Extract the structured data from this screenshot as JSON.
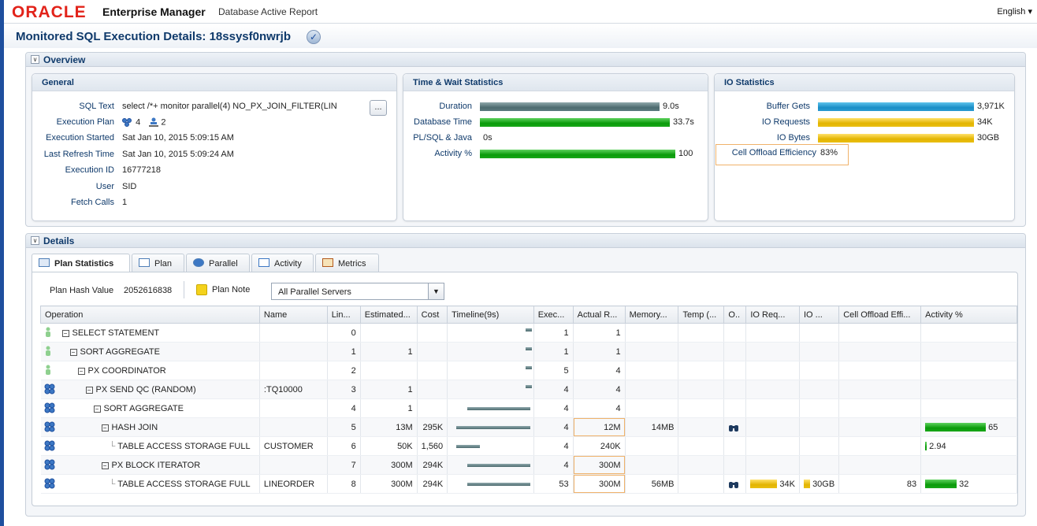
{
  "header": {
    "brand": "ORACLE",
    "product": "Enterprise Manager",
    "report": "Database Active Report",
    "language": "English"
  },
  "page": {
    "title": "Monitored SQL Execution Details: 18ssysf0nwrjb"
  },
  "overview": {
    "title": "Overview"
  },
  "general": {
    "title": "General",
    "labels": [
      "SQL Text",
      "Execution Plan",
      "Execution Started",
      "Last Refresh Time",
      "Execution ID",
      "User",
      "Fetch Calls"
    ],
    "sql_text": "select /*+ monitor parallel(4) NO_PX_JOIN_FILTER(LIN",
    "plan_parallel": "4",
    "plan_servers": "2",
    "execution_started": "Sat Jan 10, 2015 5:09:15 AM",
    "last_refresh": "Sat Jan 10, 2015 5:09:24 AM",
    "execution_id": "16777218",
    "user": "SID",
    "fetch_calls": "1",
    "more_button": "..."
  },
  "time_wait": {
    "title": "Time & Wait Statistics",
    "rows": [
      {
        "label": "Duration",
        "value": "9.0s",
        "fraction": 0.92,
        "color": "teal"
      },
      {
        "label": "Database Time",
        "value": "33.7s",
        "fraction": 0.97,
        "color": "green"
      },
      {
        "label": "PL/SQL & Java",
        "value": "0s",
        "fraction": 0,
        "color": "green"
      },
      {
        "label": "Activity %",
        "value": "100",
        "fraction": 1.0,
        "color": "green"
      }
    ]
  },
  "io": {
    "title": "IO Statistics",
    "rows": [
      {
        "label": "Buffer Gets",
        "value": "3,971K",
        "fraction": 1.0,
        "color": "blue"
      },
      {
        "label": "IO Requests",
        "value": "34K",
        "fraction": 1.0,
        "color": "gold"
      },
      {
        "label": "IO Bytes",
        "value": "30GB",
        "fraction": 1.0,
        "color": "gold"
      }
    ],
    "cell_offload_label": "Cell Offload Efficiency",
    "cell_offload_value": "83%"
  },
  "details": {
    "title": "Details",
    "tabs": [
      "Plan Statistics",
      "Plan",
      "Parallel",
      "Activity",
      "Metrics"
    ],
    "plan_hash_label": "Plan Hash Value",
    "plan_hash_value": "2052616838",
    "plan_note": "Plan Note",
    "servers_select": "All Parallel Servers",
    "columns": [
      "Operation",
      "Name",
      "Lin...",
      "Estimated...",
      "Cost",
      "Timeline(9s)",
      "Exec...",
      "Actual R...",
      "Memory...",
      "Temp (...",
      "O..",
      "IO Req...",
      "IO ...",
      "Cell Offload Effi...",
      "Activity %"
    ],
    "rows": [
      {
        "op": "SELECT STATEMENT",
        "indent": 0,
        "name": "",
        "line": "0",
        "est": "",
        "cost": "",
        "exec": "1",
        "actual": "1",
        "mem": "",
        "ioreq": "",
        "iobytes": "",
        "cell": "",
        "activity": "",
        "activity_pct": 0,
        "icon": "serial",
        "tl_start": 0.94,
        "tl_len": 0.05
      },
      {
        "op": "SORT AGGREGATE",
        "indent": 1,
        "name": "",
        "line": "1",
        "est": "1",
        "cost": "",
        "exec": "1",
        "actual": "1",
        "mem": "",
        "ioreq": "",
        "iobytes": "",
        "cell": "",
        "activity": "",
        "activity_pct": 0,
        "icon": "serial",
        "tl_start": 0.94,
        "tl_len": 0.05
      },
      {
        "op": "PX COORDINATOR",
        "indent": 2,
        "name": "",
        "line": "2",
        "est": "",
        "cost": "",
        "exec": "5",
        "actual": "4",
        "mem": "",
        "ioreq": "",
        "iobytes": "",
        "cell": "",
        "activity": "",
        "activity_pct": 0,
        "icon": "serial",
        "tl_start": 0.94,
        "tl_len": 0.05
      },
      {
        "op": "PX SEND QC (RANDOM)",
        "indent": 3,
        "name": ":TQ10000",
        "line": "3",
        "est": "1",
        "cost": "",
        "exec": "4",
        "actual": "4",
        "mem": "",
        "ioreq": "",
        "iobytes": "",
        "cell": "",
        "activity": "",
        "activity_pct": 0,
        "icon": "parallel",
        "tl_start": 0.94,
        "tl_len": 0.05
      },
      {
        "op": "SORT AGGREGATE",
        "indent": 4,
        "name": "",
        "line": "4",
        "est": "1",
        "cost": "",
        "exec": "4",
        "actual": "4",
        "mem": "",
        "ioreq": "",
        "iobytes": "",
        "cell": "",
        "activity": "",
        "activity_pct": 0,
        "icon": "parallel",
        "tl_start": 0.2,
        "tl_len": 0.8
      },
      {
        "op": "HASH JOIN",
        "indent": 5,
        "name": "",
        "line": "5",
        "est": "13M",
        "cost": "295K",
        "exec": "4",
        "actual": "12M",
        "mem": "14MB",
        "ioreq": "",
        "iobytes": "",
        "cell": "",
        "activity": "65",
        "activity_pct": 0.96,
        "icon": "parallel",
        "tl_start": 0.06,
        "tl_len": 0.94,
        "binoc": true
      },
      {
        "op": "TABLE ACCESS STORAGE FULL",
        "indent": 6,
        "name": "CUSTOMER",
        "line": "6",
        "est": "50K",
        "cost": "1,560",
        "exec": "4",
        "actual": "240K",
        "mem": "",
        "ioreq": "",
        "iobytes": "",
        "cell": "",
        "activity": "2.94",
        "activity_pct": 0.03,
        "icon": "parallel",
        "tl_start": 0.06,
        "tl_len": 0.3
      },
      {
        "op": "PX BLOCK ITERATOR",
        "indent": 5,
        "name": "",
        "line": "7",
        "est": "300M",
        "cost": "294K",
        "exec": "4",
        "actual": "300M",
        "mem": "",
        "ioreq": "",
        "iobytes": "",
        "cell": "",
        "activity": "",
        "activity_pct": 0,
        "icon": "parallel",
        "tl_start": 0.2,
        "tl_len": 0.8
      },
      {
        "op": "TABLE ACCESS STORAGE FULL",
        "indent": 6,
        "name": "LINEORDER",
        "line": "8",
        "est": "300M",
        "cost": "294K",
        "exec": "53",
        "actual": "300M",
        "mem": "56MB",
        "ioreq": "34K",
        "iobytes": "30GB",
        "cell": "83",
        "activity": "32",
        "activity_pct": 0.5,
        "icon": "parallel",
        "tl_start": 0.2,
        "tl_len": 0.8,
        "binoc": true
      }
    ]
  }
}
